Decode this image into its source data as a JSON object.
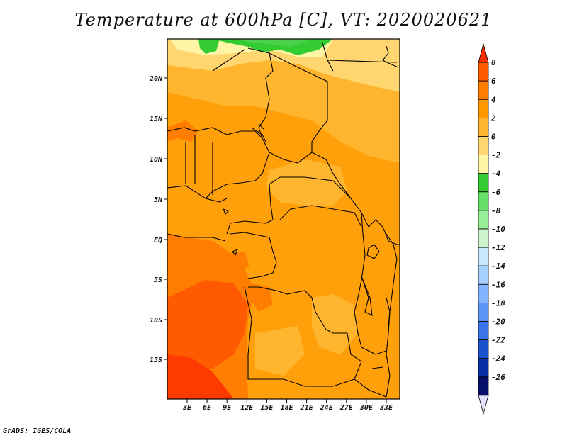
{
  "title": "Temperature at 600hPa [C], VT: 2020020621",
  "footer": "GrADS: IGES/COLA",
  "map": {
    "lon_labels": [
      "3E",
      "6E",
      "9E",
      "12E",
      "15E",
      "18E",
      "21E",
      "24E",
      "27E",
      "30E",
      "33E"
    ],
    "lat_labels": [
      "20N",
      "15N",
      "10N",
      "5N",
      "EQ",
      "5S",
      "10S",
      "15S"
    ]
  },
  "colorbar": {
    "levels": [
      "8",
      "6",
      "4",
      "2",
      "0",
      "-2",
      "-4",
      "-6",
      "-8",
      "-10",
      "-12",
      "-14",
      "-16",
      "-18",
      "-20",
      "-22",
      "-24",
      "-26"
    ],
    "colors": [
      "#ff3000",
      "#ff5a00",
      "#ff7d00",
      "#ff9900",
      "#ffb62e",
      "#ffd670",
      "#fff5a6",
      "#33cc33",
      "#66e066",
      "#99ee99",
      "#cdf5cd",
      "#c8e8ff",
      "#a5d0ff",
      "#82b4ff",
      "#5a95f5",
      "#3a74e8",
      "#1a52cc",
      "#0a2fa5",
      "#06106b",
      "#e2e2ff"
    ]
  }
}
